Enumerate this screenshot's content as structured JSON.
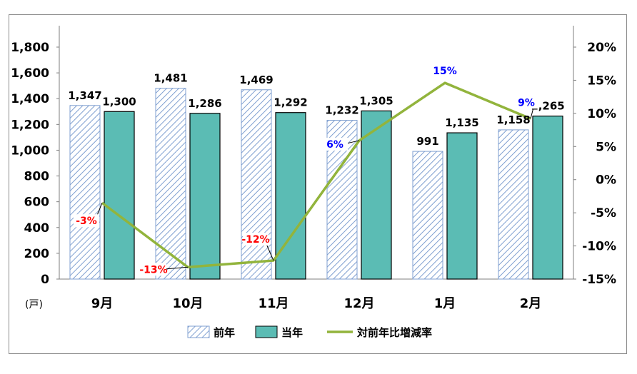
{
  "chart_data": {
    "type": "bar",
    "categories": [
      "9月",
      "10月",
      "11月",
      "12月",
      "1月",
      "2月"
    ],
    "series": [
      {
        "name": "前年",
        "kind": "bar",
        "pattern": "diagonal-hatch",
        "color": "#7f9fd0",
        "values": [
          1347,
          1481,
          1469,
          1232,
          991,
          1158
        ],
        "labels": [
          "1,347",
          "1,481",
          "1,469",
          "1,232",
          "991",
          "1,158"
        ]
      },
      {
        "name": "当年",
        "kind": "bar",
        "color": "#5bbcb4",
        "values": [
          1300,
          1286,
          1292,
          1305,
          1135,
          1265
        ],
        "labels": [
          "1,300",
          "1,286",
          "1,292",
          "1,305",
          "1,135",
          "1,265"
        ]
      },
      {
        "name": "対前年比増減率",
        "kind": "line",
        "axis": "right",
        "color": "#92b43c",
        "values": [
          -3.5,
          -13.2,
          -12.2,
          5.9,
          14.6,
          9.2
        ],
        "labels": [
          "-3%",
          "-13%",
          "-12%",
          "6%",
          "15%",
          "9%"
        ]
      }
    ],
    "y_left": {
      "ylim": [
        0,
        1800
      ],
      "step": 200,
      "ticks": [
        "0",
        "200",
        "400",
        "600",
        "800",
        "1,000",
        "1,200",
        "1,400",
        "1,600",
        "1,800"
      ]
    },
    "y_right": {
      "ylim": [
        -15,
        20
      ],
      "step": 5,
      "ticks": [
        "-15%",
        "-10%",
        "-5%",
        "0%",
        "5%",
        "10%",
        "15%",
        "20%"
      ]
    },
    "unit_label": "(戸)",
    "legend": {
      "position": "bottom"
    },
    "grid": false
  },
  "colors": {
    "negative_label": "#ff0000",
    "positive_label": "#0000ff"
  }
}
